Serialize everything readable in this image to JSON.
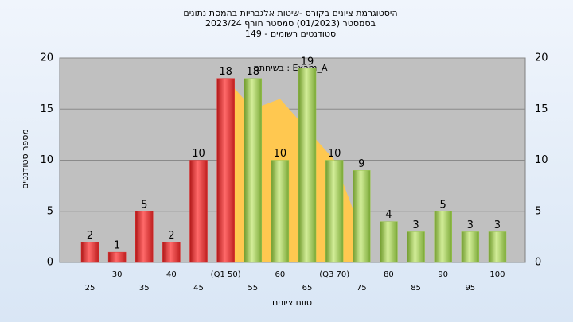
{
  "chart_data": {
    "type": "bar",
    "title": "היסטוגרמת ציונים בקורס -שיטות אלגבריות בהמסת נתונים",
    "subtitle": "בסמסטר  (01/2023)  סמסטר חורף  2023/24",
    "subtitle2": "סטודנטים רשומים - 149",
    "annotation": "בשיחתם : Exam_A",
    "y_label": "מספר סטודנטים",
    "x_label": "טווח ציונים",
    "categories": [
      "25",
      "30",
      "35",
      "40",
      "45",
      "(Q1 50)",
      "55",
      "60",
      "65",
      "(Q3 70)",
      "75",
      "80",
      "85",
      "90",
      "95",
      "100"
    ],
    "values": [
      2,
      1,
      5,
      2,
      10,
      18,
      18,
      10,
      19,
      10,
      9,
      4,
      3,
      5,
      3,
      3
    ],
    "colors": [
      "#e03030",
      "#e03030",
      "#e03030",
      "#e03030",
      "#e03030",
      "#e03030",
      "#9cc850",
      "#9cc850",
      "#9cc850",
      "#9cc850",
      "#9cc850",
      "#9cc850",
      "#9cc850",
      "#9cc850",
      "#9cc850",
      "#9cc850"
    ],
    "area": {
      "color": "#ffc850",
      "values": [
        null,
        null,
        null,
        null,
        null,
        18,
        15,
        16,
        13,
        10,
        3,
        null,
        null,
        null,
        null,
        null
      ]
    },
    "ylim": [
      0,
      20
    ],
    "yticks": [
      0,
      5,
      10,
      15,
      20
    ],
    "grid": true
  }
}
